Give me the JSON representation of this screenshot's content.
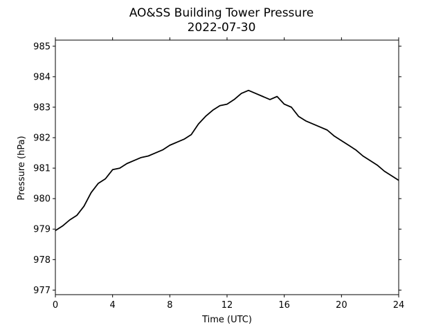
{
  "chart_data": {
    "type": "line",
    "title": "AO&SS Building Tower Pressure",
    "subtitle": "2022-07-30",
    "xlabel": "Time (UTC)",
    "ylabel": "Pressure (hPa)",
    "xlim": [
      0,
      24
    ],
    "ylim": [
      976.85,
      985.2
    ],
    "xticks": [
      0,
      4,
      8,
      12,
      16,
      20,
      24
    ],
    "yticks": [
      977,
      978,
      979,
      980,
      981,
      982,
      983,
      984,
      985
    ],
    "grid": false,
    "line_color": "#000000",
    "series": [
      {
        "x": [
          0,
          0.5,
          1,
          1.5,
          2,
          2.5,
          3,
          3.5,
          4,
          4.5,
          5,
          5.5,
          6,
          6.5,
          7,
          7.5,
          8,
          8.5,
          9,
          9.5,
          10,
          10.5,
          11,
          11.5,
          12,
          12.5,
          13,
          13.5,
          14,
          14.5,
          15,
          15.5,
          16,
          16.5,
          17,
          17.5,
          18,
          18.5,
          19,
          19.5,
          20,
          20.5,
          21,
          21.5,
          22,
          22.5,
          23,
          23.5,
          24
        ],
        "values": [
          978.95,
          979.1,
          979.3,
          979.45,
          979.75,
          980.2,
          980.5,
          980.65,
          980.95,
          981.0,
          981.15,
          981.25,
          981.35,
          981.4,
          981.5,
          981.6,
          981.75,
          981.85,
          981.95,
          982.1,
          982.45,
          982.7,
          982.9,
          983.05,
          983.1,
          983.25,
          983.45,
          983.55,
          983.45,
          983.35,
          983.25,
          983.35,
          983.1,
          983.0,
          982.7,
          982.55,
          982.45,
          982.35,
          982.25,
          982.05,
          981.9,
          981.75,
          981.6,
          981.4,
          981.25,
          981.1,
          980.9,
          980.75,
          980.6
        ]
      }
    ]
  }
}
